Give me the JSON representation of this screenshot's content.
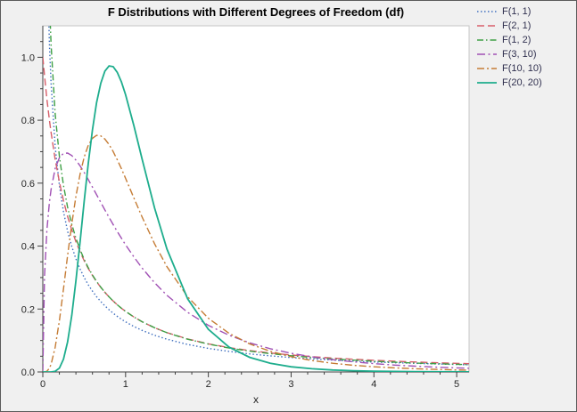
{
  "chart_data": {
    "type": "line",
    "title": "F Distributions with Different Degrees of Freedom (df)",
    "xlabel": "x",
    "ylabel": "",
    "xlim": [
      0,
      5.15
    ],
    "ylim": [
      0,
      1.1
    ],
    "x_ticks": [
      0,
      1,
      2,
      3,
      4,
      5
    ],
    "x_minor_step": 0.2,
    "y_ticks": [
      0.0,
      0.2,
      0.4,
      0.6,
      0.8,
      1.0
    ],
    "y_minor_step": 0.05,
    "grid": false,
    "legend_position": "right-top",
    "background": "#F0F0F0",
    "plot_background": "#FFFFFF",
    "axis_color": "#3F3F3F",
    "frame_color": "#C6C6C6",
    "x": [
      0,
      0.02,
      0.05,
      0.08,
      0.1,
      0.15,
      0.2,
      0.25,
      0.3,
      0.35,
      0.4,
      0.45,
      0.5,
      0.55,
      0.6,
      0.65,
      0.7,
      0.75,
      0.8,
      0.85,
      0.9,
      0.95,
      1.0,
      1.1,
      1.2,
      1.35,
      1.5,
      1.75,
      2.0,
      2.25,
      2.5,
      2.75,
      3.0,
      3.25,
      3.5,
      3.75,
      4.0,
      4.25,
      4.5,
      4.75,
      5.0,
      5.15
    ],
    "series": [
      {
        "name": "F(1, 1)",
        "df": [
          1,
          1
        ],
        "color": "#3F6FBF",
        "dash": "1.5 2.5",
        "width": 1.4,
        "values": [
          null,
          2.2066,
          1.3557,
          1.042,
          0.9151,
          0.7147,
          0.5931,
          0.5093,
          0.447,
          0.3986,
          0.3595,
          0.3273,
          0.3001,
          0.2769,
          0.2568,
          0.2393,
          0.2238,
          0.21,
          0.1977,
          0.1866,
          0.1766,
          0.1675,
          0.1592,
          0.1445,
          0.1321,
          0.1166,
          0.104,
          0.0875,
          0.075,
          0.0653,
          0.0575,
          0.0512,
          0.0459,
          0.0415,
          0.0378,
          0.0346,
          0.0318,
          0.0294,
          0.0273,
          0.0254,
          0.0237,
          0.0228
        ]
      },
      {
        "name": "F(2, 1)",
        "df": [
          2,
          1
        ],
        "color": "#D75F6A",
        "dash": "8 4",
        "width": 1.4,
        "values": [
          1.0,
          0.9429,
          0.8668,
          0.8004,
          0.7607,
          0.6747,
          0.6037,
          0.5443,
          0.4941,
          0.4512,
          0.4141,
          0.3818,
          0.3536,
          0.3286,
          0.3064,
          0.2867,
          0.269,
          0.253,
          0.2385,
          0.2254,
          0.2134,
          0.2025,
          0.1925,
          0.1747,
          0.1595,
          0.1405,
          0.125,
          0.1048,
          0.0894,
          0.0775,
          0.068,
          0.0603,
          0.054,
          0.0487,
          0.0442,
          0.0403,
          0.037,
          0.0342,
          0.0316,
          0.0294,
          0.0274,
          0.0263
        ]
      },
      {
        "name": "F(1, 2)",
        "df": [
          1,
          2
        ],
        "color": "#3FA046",
        "dash": "7 3 1.5 3",
        "width": 1.4,
        "values": [
          null,
          2.463,
          1.5237,
          1.1786,
          1.0392,
          0.819,
          0.6853,
          0.5926,
          0.5235,
          0.4692,
          0.4252,
          0.3887,
          0.3578,
          0.3311,
          0.308,
          0.2875,
          0.2694,
          0.2532,
          0.2386,
          0.2254,
          0.2134,
          0.2025,
          0.1925,
          0.1747,
          0.1595,
          0.1404,
          0.1247,
          0.1041,
          0.0884,
          0.0761,
          0.0663,
          0.0582,
          0.0516,
          0.0461,
          0.0414,
          0.0375,
          0.034,
          0.0311,
          0.0284,
          0.0262,
          0.0242,
          0.0231
        ]
      },
      {
        "name": "F(3, 10)",
        "df": [
          3,
          10
        ],
        "color": "#A050B4",
        "dash": "9 3.5 2 3.5",
        "width": 1.4,
        "values": [
          0,
          0.3025,
          0.4514,
          0.5392,
          0.5803,
          0.647,
          0.681,
          0.6949,
          0.6956,
          0.6876,
          0.6734,
          0.6549,
          0.634,
          0.6112,
          0.5874,
          0.5632,
          0.539,
          0.515,
          0.4913,
          0.4684,
          0.4462,
          0.4247,
          0.4041,
          0.3655,
          0.3301,
          0.2835,
          0.2434,
          0.1894,
          0.1482,
          0.1167,
          0.0925,
          0.0739,
          0.0594,
          0.048,
          0.0391,
          0.0321,
          0.0265,
          0.0219,
          0.0183,
          0.0153,
          0.0129,
          0.0116
        ]
      },
      {
        "name": "F(10, 10)",
        "df": [
          10,
          10
        ],
        "color": "#C57C35",
        "dash": "8 3 2 3",
        "width": 1.4,
        "values": [
          0,
          0.0001,
          0.0024,
          0.012,
          0.0243,
          0.0788,
          0.1628,
          0.2642,
          0.3702,
          0.4702,
          0.5576,
          0.6288,
          0.6828,
          0.7204,
          0.7426,
          0.7519,
          0.7503,
          0.7399,
          0.7227,
          0.7003,
          0.6742,
          0.6455,
          0.6152,
          0.553,
          0.4919,
          0.4074,
          0.3344,
          0.2389,
          0.1707,
          0.1228,
          0.0892,
          0.0655,
          0.0487,
          0.0366,
          0.0278,
          0.0213,
          0.0165,
          0.0129,
          0.0102,
          0.0081,
          0.0065,
          0.0057
        ]
      },
      {
        "name": "F(20, 20)",
        "df": [
          20,
          20
        ],
        "color": "#1EAD8D",
        "dash": "",
        "width": 1.8,
        "values": [
          0,
          0,
          0,
          0,
          0.0001,
          0.0022,
          0.0123,
          0.0406,
          0.0957,
          0.1801,
          0.2894,
          0.4135,
          0.5426,
          0.663,
          0.7701,
          0.8561,
          0.9172,
          0.9558,
          0.9726,
          0.9703,
          0.9521,
          0.9212,
          0.881,
          0.783,
          0.6757,
          0.5215,
          0.3905,
          0.2325,
          0.1356,
          0.079,
          0.0463,
          0.0275,
          0.0165,
          0.0101,
          0.0063,
          0.004,
          0.0025,
          0.0017,
          0.0011,
          0.0007,
          0.0005,
          0.0004
        ]
      }
    ]
  }
}
